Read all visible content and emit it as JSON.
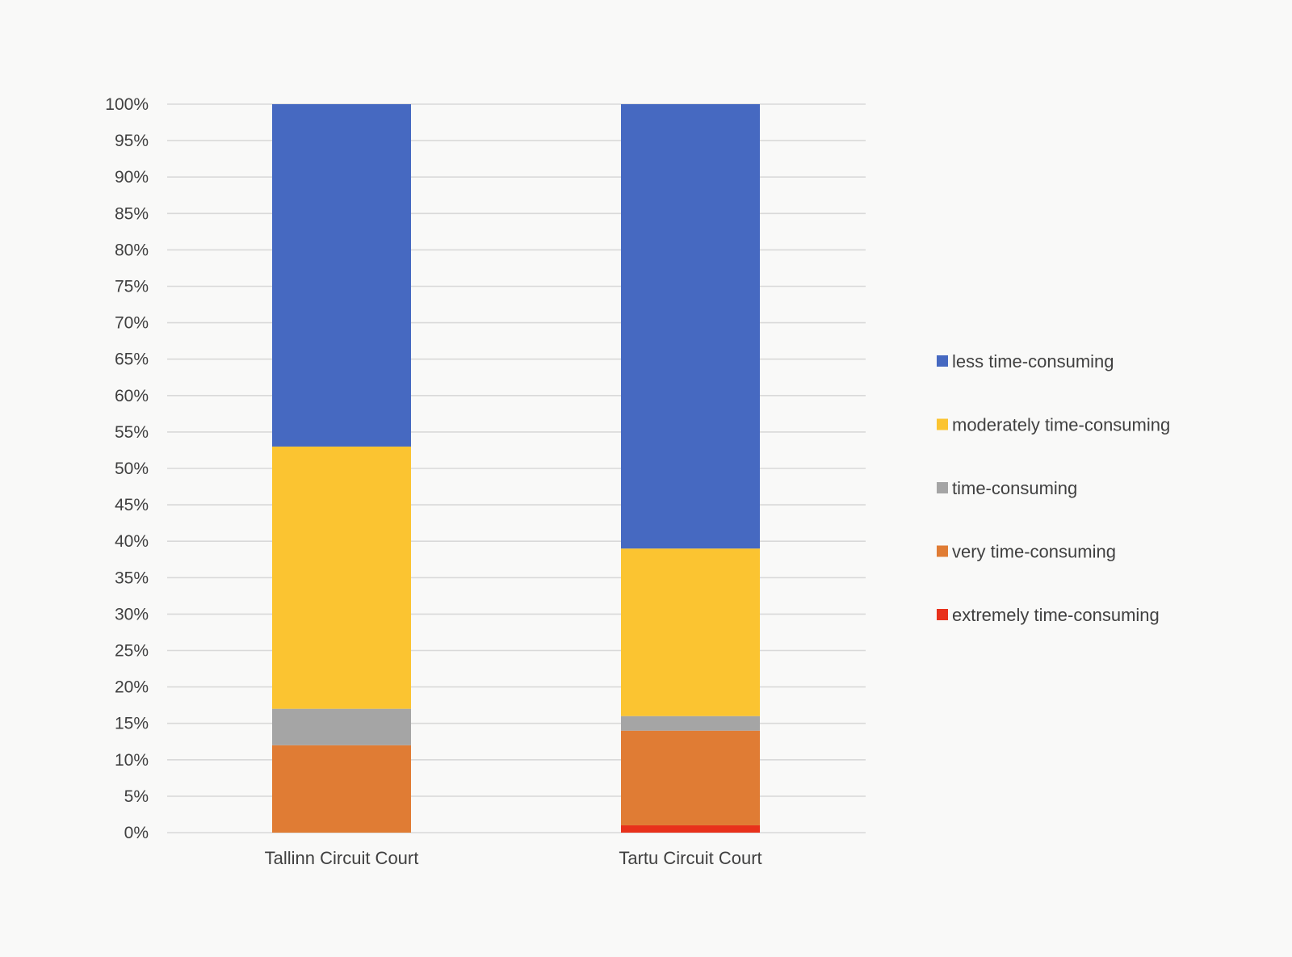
{
  "chart_data": {
    "type": "bar",
    "stacked": true,
    "normalized": true,
    "title": "",
    "xlabel": "",
    "ylabel": "",
    "ylim": [
      0,
      100
    ],
    "y_ticks": [
      "0%",
      "5%",
      "10%",
      "15%",
      "20%",
      "25%",
      "30%",
      "35%",
      "40%",
      "45%",
      "50%",
      "55%",
      "60%",
      "65%",
      "70%",
      "75%",
      "80%",
      "85%",
      "90%",
      "95%",
      "100%"
    ],
    "grid": true,
    "legend_position": "right",
    "categories": [
      "Tallinn Circuit Court",
      "Tartu Circuit Court"
    ],
    "series": [
      {
        "name": "extremely time-consuming",
        "color": "#e8311b",
        "values": [
          0,
          1
        ]
      },
      {
        "name": "very time-consuming",
        "color": "#e07c34",
        "values": [
          12,
          13
        ]
      },
      {
        "name": "time-consuming",
        "color": "#a5a5a5",
        "values": [
          5,
          2
        ]
      },
      {
        "name": "moderately time-consuming",
        "color": "#fbc431",
        "values": [
          36,
          23
        ]
      },
      {
        "name": "less time-consuming",
        "color": "#4669c1",
        "values": [
          47,
          61
        ]
      }
    ],
    "legend_order": [
      "less time-consuming",
      "moderately time-consuming",
      "time-consuming",
      "very time-consuming",
      "extremely time-consuming"
    ]
  }
}
